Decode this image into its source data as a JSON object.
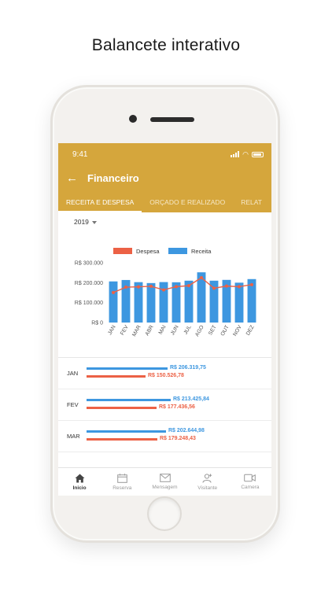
{
  "headline": "Balancete interativo",
  "status": {
    "time": "9:41"
  },
  "header": {
    "title": "Financeiro",
    "back_icon": "arrow-left-icon"
  },
  "tabs": [
    {
      "label": "RECEITA E DESPESA",
      "active": true
    },
    {
      "label": "ORÇADO E REALIZADO",
      "active": false
    },
    {
      "label": "RELAT",
      "active": false
    }
  ],
  "year_selector": {
    "value": "2019"
  },
  "chart_data": {
    "type": "bar",
    "categories": [
      "JAN",
      "FEV",
      "MAR",
      "ABR",
      "MAI",
      "JUN",
      "JUL",
      "AGO",
      "SET",
      "OUT",
      "NOV",
      "DEZ"
    ],
    "series": [
      {
        "name": "Receita",
        "type": "bar",
        "color": "#3d97e0",
        "values": [
          206319.75,
          213425.84,
          202644.98,
          198000,
          203000,
          202000,
          210000,
          252000,
          210000,
          214000,
          200000,
          218000
        ]
      },
      {
        "name": "Despesa",
        "type": "line",
        "color": "#ec6145",
        "values": [
          150526.78,
          177436.56,
          179248.43,
          182000,
          164000,
          180000,
          185000,
          225000,
          172000,
          183000,
          180000,
          190000
        ]
      }
    ],
    "y_ticks": [
      "R$ 300.000",
      "R$ 200.000",
      "R$ 100.000",
      "R$ 0"
    ],
    "ylim": [
      0,
      300000
    ],
    "legend_position": "top",
    "grid": false
  },
  "summary": [
    {
      "month": "JAN",
      "receita": 206319.75,
      "despesa": 150526.78,
      "receita_label": "R$ 206.319,75",
      "despesa_label": "R$ 150.526,78"
    },
    {
      "month": "FEV",
      "receita": 213425.84,
      "despesa": 177436.56,
      "receita_label": "R$ 213.425,84",
      "despesa_label": "R$ 177.436,56"
    },
    {
      "month": "MAR",
      "receita": 202644.98,
      "despesa": 179248.43,
      "receita_label": "R$ 202.644,98",
      "despesa_label": "R$ 179.248,43"
    }
  ],
  "bottom_nav": [
    {
      "label": "Inicio",
      "icon": "home-icon",
      "active": true
    },
    {
      "label": "Reserva",
      "icon": "calendar-icon",
      "active": false
    },
    {
      "label": "Mensagem",
      "icon": "envelope-icon",
      "active": false
    },
    {
      "label": "Visitante",
      "icon": "add-person-icon",
      "active": false
    },
    {
      "label": "Camera",
      "icon": "video-camera-icon",
      "active": false
    }
  ],
  "colors": {
    "brand": "#d5a63c",
    "receita": "#3d97e0",
    "despesa": "#ec6145"
  }
}
